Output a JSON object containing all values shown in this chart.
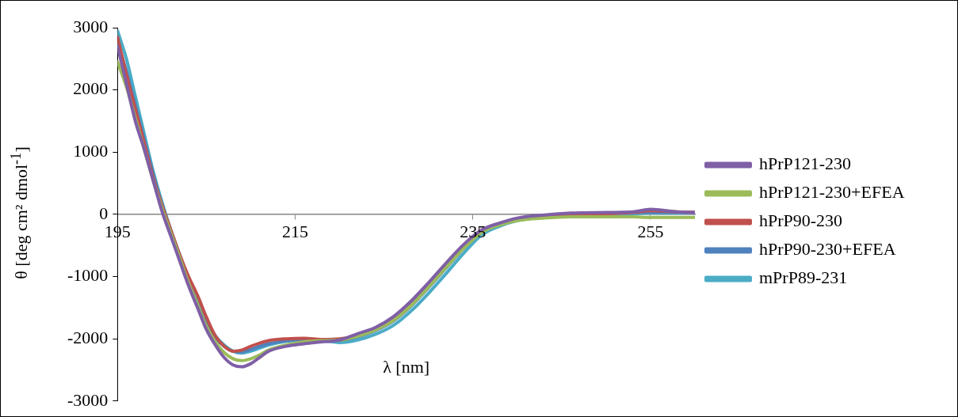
{
  "chart_data": {
    "type": "line",
    "xlabel": "λ [nm]",
    "ylabel": "θ [deg cm² dmol$^{-1}$]",
    "x": [
      195,
      196,
      197,
      198,
      199,
      200,
      201,
      202,
      203,
      204,
      205,
      206,
      207,
      208,
      209,
      210,
      211,
      212,
      214,
      216,
      218,
      220,
      222,
      224,
      226,
      228,
      230,
      232,
      234,
      236,
      238,
      240,
      243,
      246,
      250,
      253,
      255,
      258,
      260
    ],
    "xlim": [
      195,
      260
    ],
    "xticks": [
      195,
      215,
      235,
      255
    ],
    "ylim": [
      -3000,
      3000
    ],
    "yticks": [
      -3000,
      -2000,
      -1000,
      0,
      1000,
      2000,
      3000
    ],
    "grid": false,
    "legend": "right",
    "marker": "none",
    "line_style": "solid",
    "series": [
      {
        "name": "hPrP121-230",
        "color": "#7f5fa6",
        "values": [
          2700,
          2100,
          1500,
          1050,
          550,
          50,
          -350,
          -750,
          -1150,
          -1500,
          -1850,
          -2100,
          -2300,
          -2420,
          -2450,
          -2400,
          -2300,
          -2200,
          -2120,
          -2080,
          -2050,
          -2020,
          -1920,
          -1820,
          -1650,
          -1400,
          -1100,
          -780,
          -480,
          -250,
          -140,
          -60,
          -10,
          20,
          30,
          40,
          80,
          40,
          30
        ]
      },
      {
        "name": "hPrP121-230+EFEA",
        "color": "#9bbb59",
        "values": [
          2450,
          2050,
          1550,
          1050,
          550,
          100,
          -300,
          -700,
          -1100,
          -1450,
          -1800,
          -2050,
          -2220,
          -2320,
          -2350,
          -2320,
          -2260,
          -2180,
          -2100,
          -2050,
          -2030,
          -2020,
          -1960,
          -1860,
          -1710,
          -1470,
          -1170,
          -850,
          -540,
          -290,
          -170,
          -100,
          -60,
          -40,
          -40,
          -40,
          -50,
          -50,
          -50
        ]
      },
      {
        "name": "hPrP90-230",
        "color": "#c0504d",
        "values": [
          2850,
          2250,
          1700,
          1150,
          600,
          150,
          -250,
          -650,
          -1000,
          -1300,
          -1650,
          -1950,
          -2120,
          -2200,
          -2180,
          -2120,
          -2070,
          -2030,
          -2000,
          -1990,
          -2010,
          -2000,
          -1950,
          -1850,
          -1700,
          -1450,
          -1150,
          -830,
          -520,
          -270,
          -150,
          -80,
          -30,
          0,
          10,
          30,
          60,
          40,
          30
        ]
      },
      {
        "name": "hPrP90-230+EFEA",
        "color": "#4f81bd",
        "values": [
          2750,
          2300,
          1750,
          1200,
          650,
          150,
          -300,
          -700,
          -1100,
          -1450,
          -1750,
          -1980,
          -2120,
          -2200,
          -2210,
          -2170,
          -2120,
          -2080,
          -2030,
          -2010,
          -2010,
          -2020,
          -1970,
          -1870,
          -1720,
          -1480,
          -1180,
          -860,
          -540,
          -280,
          -150,
          -70,
          -20,
          10,
          20,
          30,
          30,
          30,
          30
        ]
      },
      {
        "name": "mPrP89-231",
        "color": "#4bacc6",
        "values": [
          2950,
          2500,
          1900,
          1300,
          700,
          200,
          -250,
          -650,
          -1050,
          -1400,
          -1700,
          -1950,
          -2100,
          -2200,
          -2230,
          -2200,
          -2150,
          -2100,
          -2040,
          -2020,
          -2030,
          -2060,
          -2020,
          -1930,
          -1790,
          -1560,
          -1270,
          -950,
          -620,
          -330,
          -190,
          -100,
          -40,
          -10,
          0,
          10,
          20,
          20,
          20
        ]
      }
    ]
  }
}
